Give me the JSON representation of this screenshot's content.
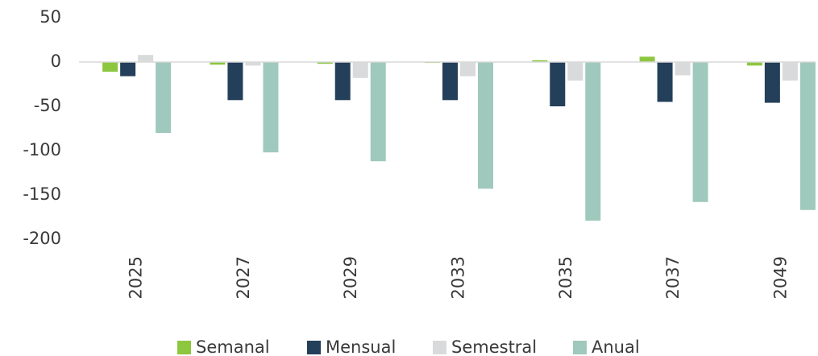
{
  "chart_data": {
    "type": "bar",
    "categories": [
      "2025",
      "2027",
      "2029",
      "2033",
      "2035",
      "2037",
      "2049"
    ],
    "series": [
      {
        "name": "Semanal",
        "color": "#8dc63f",
        "values": [
          -11,
          -3,
          -2,
          -1,
          2,
          6,
          -4
        ]
      },
      {
        "name": "Mensual",
        "color": "#243f5a",
        "values": [
          -16,
          -43,
          -43,
          -43,
          -50,
          -45,
          -46
        ]
      },
      {
        "name": "Semestral",
        "color": "#d9dadc",
        "values": [
          8,
          -4,
          -18,
          -16,
          -21,
          -15,
          -21
        ]
      },
      {
        "name": "Anual",
        "color": "#9fc9bc",
        "values": [
          -80,
          -102,
          -112,
          -143,
          -179,
          -158,
          -167
        ]
      }
    ],
    "ylim": [
      -200,
      50
    ],
    "yticks": [
      -200,
      -150,
      -100,
      -50,
      0,
      50
    ],
    "grid": false,
    "legend": "bottom"
  }
}
